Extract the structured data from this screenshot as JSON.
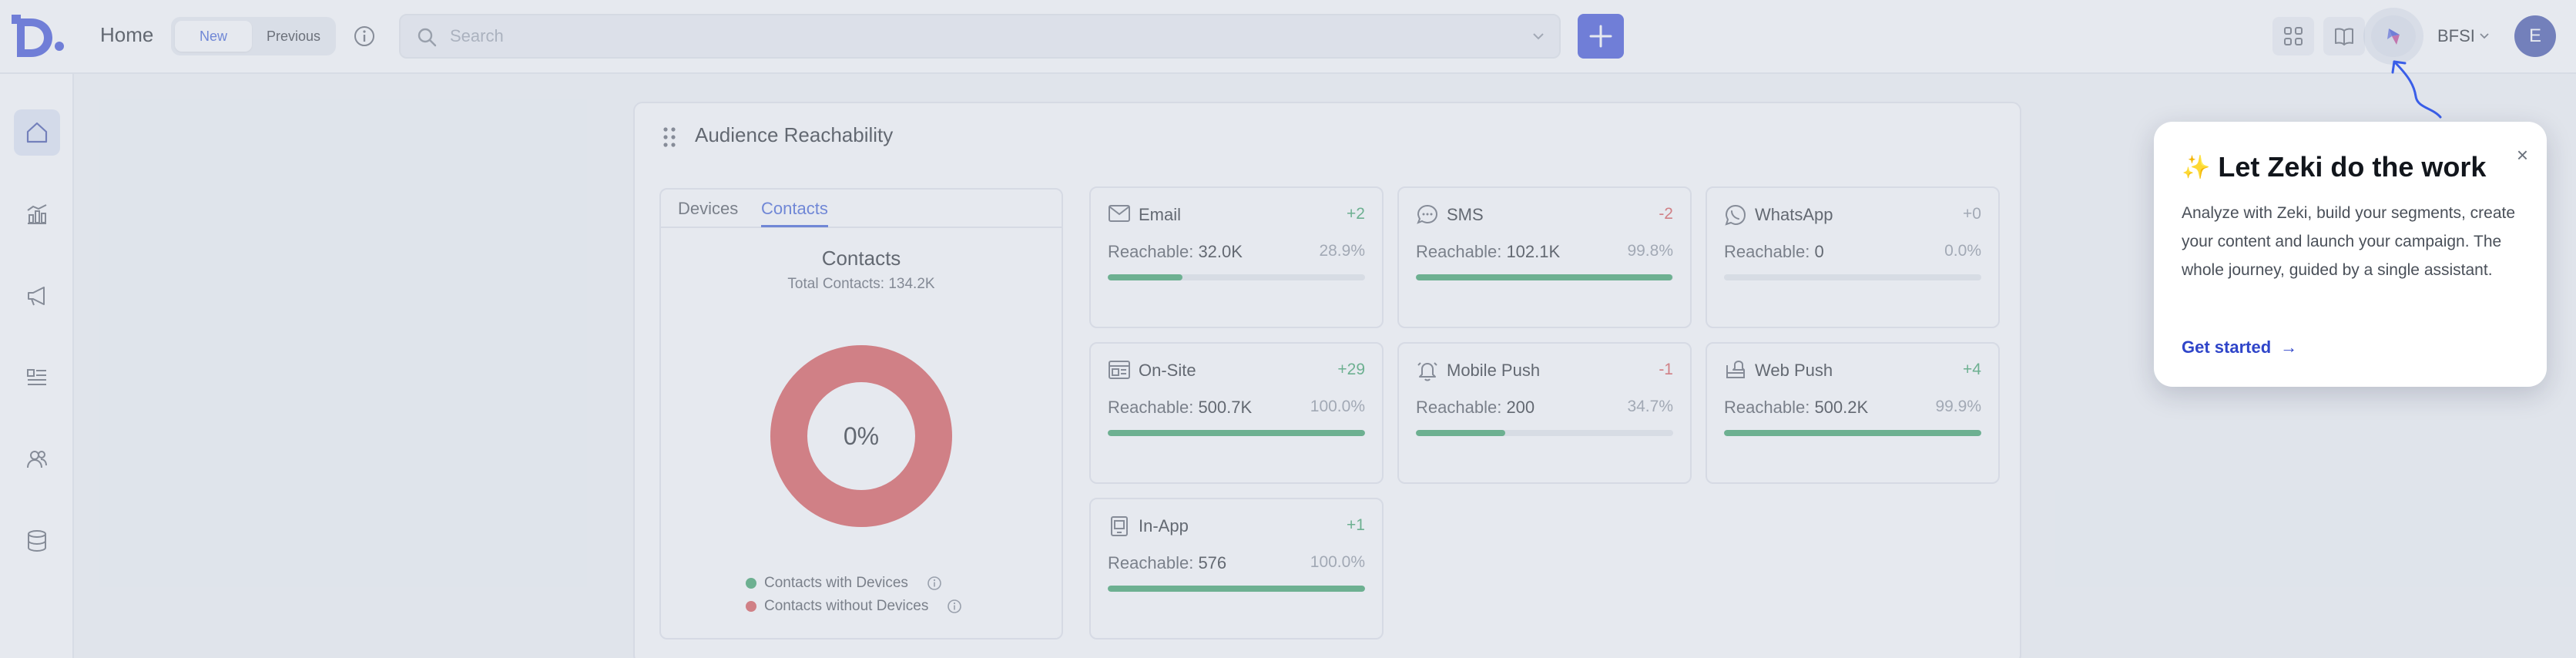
{
  "header": {
    "title": "Home",
    "toggle": {
      "new_label": "New",
      "previous_label": "Previous",
      "selected": "New"
    },
    "search": {
      "placeholder": "Search",
      "value": ""
    },
    "org_name": "BFSI",
    "avatar_initial": "E",
    "icons": [
      "logo-icon",
      "info-icon",
      "search-icon",
      "chevron-down-icon",
      "plus-icon",
      "apps-grid-icon",
      "book-icon",
      "zeki-icon"
    ]
  },
  "sidebar": {
    "items": [
      {
        "name": "home",
        "icon": "home-icon",
        "active": true
      },
      {
        "name": "analytics",
        "icon": "analytics-icon",
        "active": false
      },
      {
        "name": "campaigns",
        "icon": "megaphone-icon",
        "active": false
      },
      {
        "name": "content",
        "icon": "content-icon",
        "active": false
      },
      {
        "name": "audience",
        "icon": "users-icon",
        "active": false
      },
      {
        "name": "data",
        "icon": "database-icon",
        "active": false
      }
    ]
  },
  "main": {
    "title": "Audience Reachability",
    "tabs": [
      {
        "label": "Devices",
        "active": false
      },
      {
        "label": "Contacts",
        "active": true
      }
    ],
    "contacts": {
      "title": "Contacts",
      "subtitle": "Total Contacts: 134.2K",
      "center_label": "0%",
      "with_devices_fraction": 0,
      "legend": [
        {
          "label": "Contacts with Devices",
          "color": "#2f9e5d"
        },
        {
          "label": "Contacts without Devices",
          "color": "#d94a4a"
        }
      ]
    },
    "channels": [
      {
        "name": "Email",
        "icon": "email-icon",
        "delta": "+2",
        "delta_color": "#2f9e5d",
        "reachable_label": "Reachable:",
        "reachable_value": "32.0K",
        "percent": "28.9%",
        "fill": 0.289
      },
      {
        "name": "SMS",
        "icon": "sms-icon",
        "delta": "-2",
        "delta_color": "#d94a4a",
        "reachable_label": "Reachable:",
        "reachable_value": "102.1K",
        "percent": "99.8%",
        "fill": 0.998
      },
      {
        "name": "WhatsApp",
        "icon": "whatsapp-icon",
        "delta": "+0",
        "delta_color": "#8a919b",
        "reachable_label": "Reachable:",
        "reachable_value": "0",
        "percent": "0.0%",
        "fill": 0
      },
      {
        "name": "On-Site",
        "icon": "onsite-icon",
        "delta": "+29",
        "delta_color": "#2f9e5d",
        "reachable_label": "Reachable:",
        "reachable_value": "500.7K",
        "percent": "100.0%",
        "fill": 1
      },
      {
        "name": "Mobile Push",
        "icon": "bell-icon",
        "delta": "-1",
        "delta_color": "#d94a4a",
        "reachable_label": "Reachable:",
        "reachable_value": "200",
        "percent": "34.7%",
        "fill": 0.347
      },
      {
        "name": "Web Push",
        "icon": "webpush-icon",
        "delta": "+4",
        "delta_color": "#2f9e5d",
        "reachable_label": "Reachable:",
        "reachable_value": "500.2K",
        "percent": "99.9%",
        "fill": 0.999
      },
      {
        "name": "In-App",
        "icon": "inapp-icon",
        "delta": "+1",
        "delta_color": "#2f9e5d",
        "reachable_label": "Reachable:",
        "reachable_value": "576",
        "percent": "100.0%",
        "fill": 1
      }
    ]
  },
  "popover": {
    "sparkle": "✨",
    "title": "Let Zeki do the work",
    "body": "Analyze with Zeki, build your segments, create your content and launch your campaign. The whole journey, guided by a single assistant.",
    "cta": "Get started",
    "cta_arrow": "→",
    "close": "×"
  },
  "colors": {
    "accent": "#3447d6",
    "success": "#2f9e5d",
    "danger": "#d94a4a"
  }
}
